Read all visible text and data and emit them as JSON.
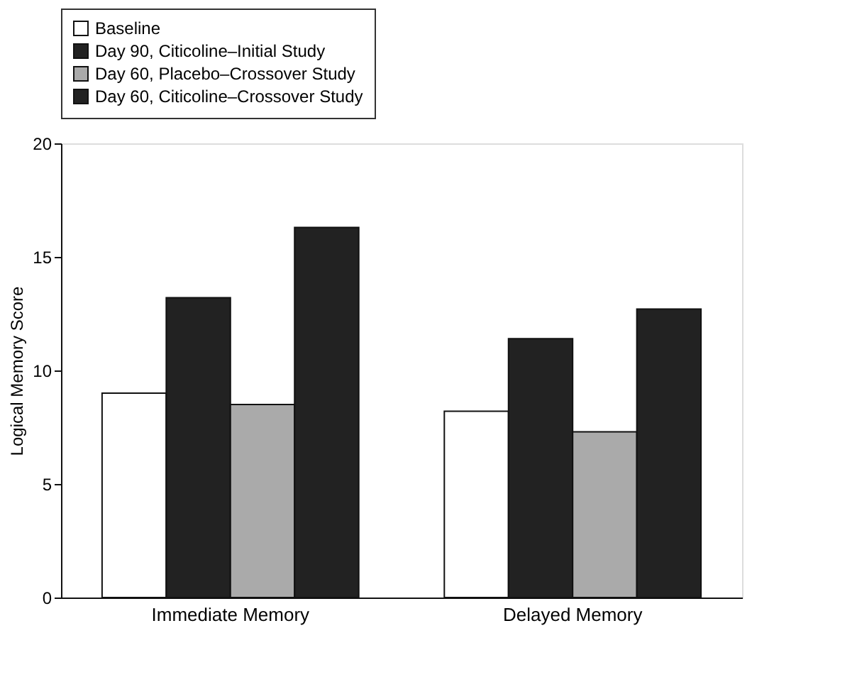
{
  "chart_data": {
    "type": "bar",
    "ylabel": "Logical Memory Score",
    "categories": [
      "Immediate Memory",
      "Delayed Memory"
    ],
    "series": [
      {
        "name": "Baseline",
        "color": "#ffffff",
        "values": [
          9.0,
          8.2
        ]
      },
      {
        "name": "Day 90, Citicoline–Initial Study",
        "color": "#222222",
        "values": [
          13.2,
          11.4
        ]
      },
      {
        "name": "Day 60, Placebo–Crossover Study",
        "color": "#aaaaaa",
        "values": [
          8.5,
          7.3
        ]
      },
      {
        "name": "Day 60, Citicoline–Crossover Study",
        "color": "#222222",
        "values": [
          16.3,
          12.7
        ]
      }
    ],
    "ylim": [
      0,
      20
    ],
    "yticks": [
      0,
      5,
      10,
      15,
      20
    ],
    "grid": false,
    "legend": "top"
  }
}
